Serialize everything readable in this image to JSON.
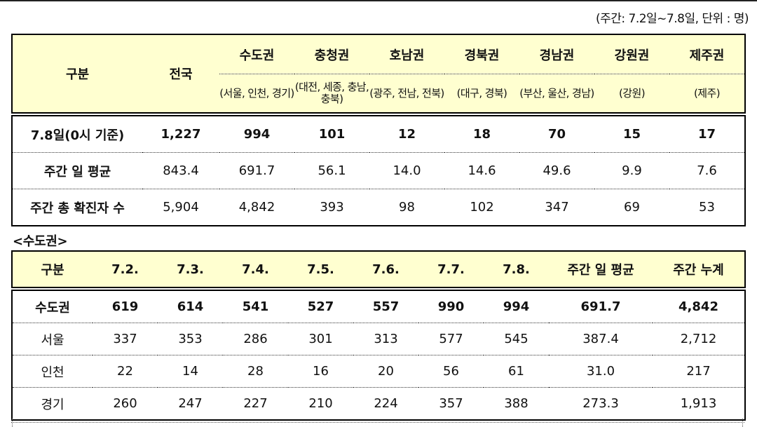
{
  "unit_note": "(주간: 7.2일~7.8일, 단위 : 명)",
  "table1": {
    "header": {
      "category": "구분",
      "nation": "전국",
      "regions": [
        {
          "name": "수도권",
          "sub": "(서울, 인천, 경기)"
        },
        {
          "name": "충청권",
          "sub": "(대전, 세종, 충남, 충북)"
        },
        {
          "name": "호남권",
          "sub": "(광주, 전남, 전북)"
        },
        {
          "name": "경북권",
          "sub": "(대구, 경북)"
        },
        {
          "name": "경남권",
          "sub": "(부산, 울산, 경남)"
        },
        {
          "name": "강원권",
          "sub": "(강원)"
        },
        {
          "name": "제주권",
          "sub": "(제주)"
        }
      ]
    },
    "rows": [
      {
        "label": "7.8일(0시 기준)",
        "values": [
          "1,227",
          "994",
          "101",
          "12",
          "18",
          "70",
          "15",
          "17"
        ]
      },
      {
        "label": "주간 일 평균",
        "values": [
          "843.4",
          "691.7",
          "56.1",
          "14.0",
          "14.6",
          "49.6",
          "9.9",
          "7.6"
        ]
      },
      {
        "label": "주간 총 확진자 수",
        "values": [
          "5,904",
          "4,842",
          "393",
          "98",
          "102",
          "347",
          "69",
          "53"
        ]
      }
    ]
  },
  "section2_title": "<수도권>",
  "table2": {
    "headers": [
      "구분",
      "7.2.",
      "7.3.",
      "7.4.",
      "7.5.",
      "7.6.",
      "7.7.",
      "7.8.",
      "주간 일 평균",
      "주간 누계"
    ],
    "rows": [
      {
        "label": "수도권",
        "values": [
          "619",
          "614",
          "541",
          "527",
          "557",
          "990",
          "994",
          "691.7",
          "4,842"
        ]
      },
      {
        "label": "서울",
        "values": [
          "337",
          "353",
          "286",
          "301",
          "313",
          "577",
          "545",
          "387.4",
          "2,712"
        ]
      },
      {
        "label": "인천",
        "values": [
          "22",
          "14",
          "28",
          "16",
          "20",
          "56",
          "61",
          "31.0",
          "217"
        ]
      },
      {
        "label": "경기",
        "values": [
          "260",
          "247",
          "227",
          "210",
          "224",
          "357",
          "388",
          "273.3",
          "1,913"
        ]
      }
    ]
  }
}
